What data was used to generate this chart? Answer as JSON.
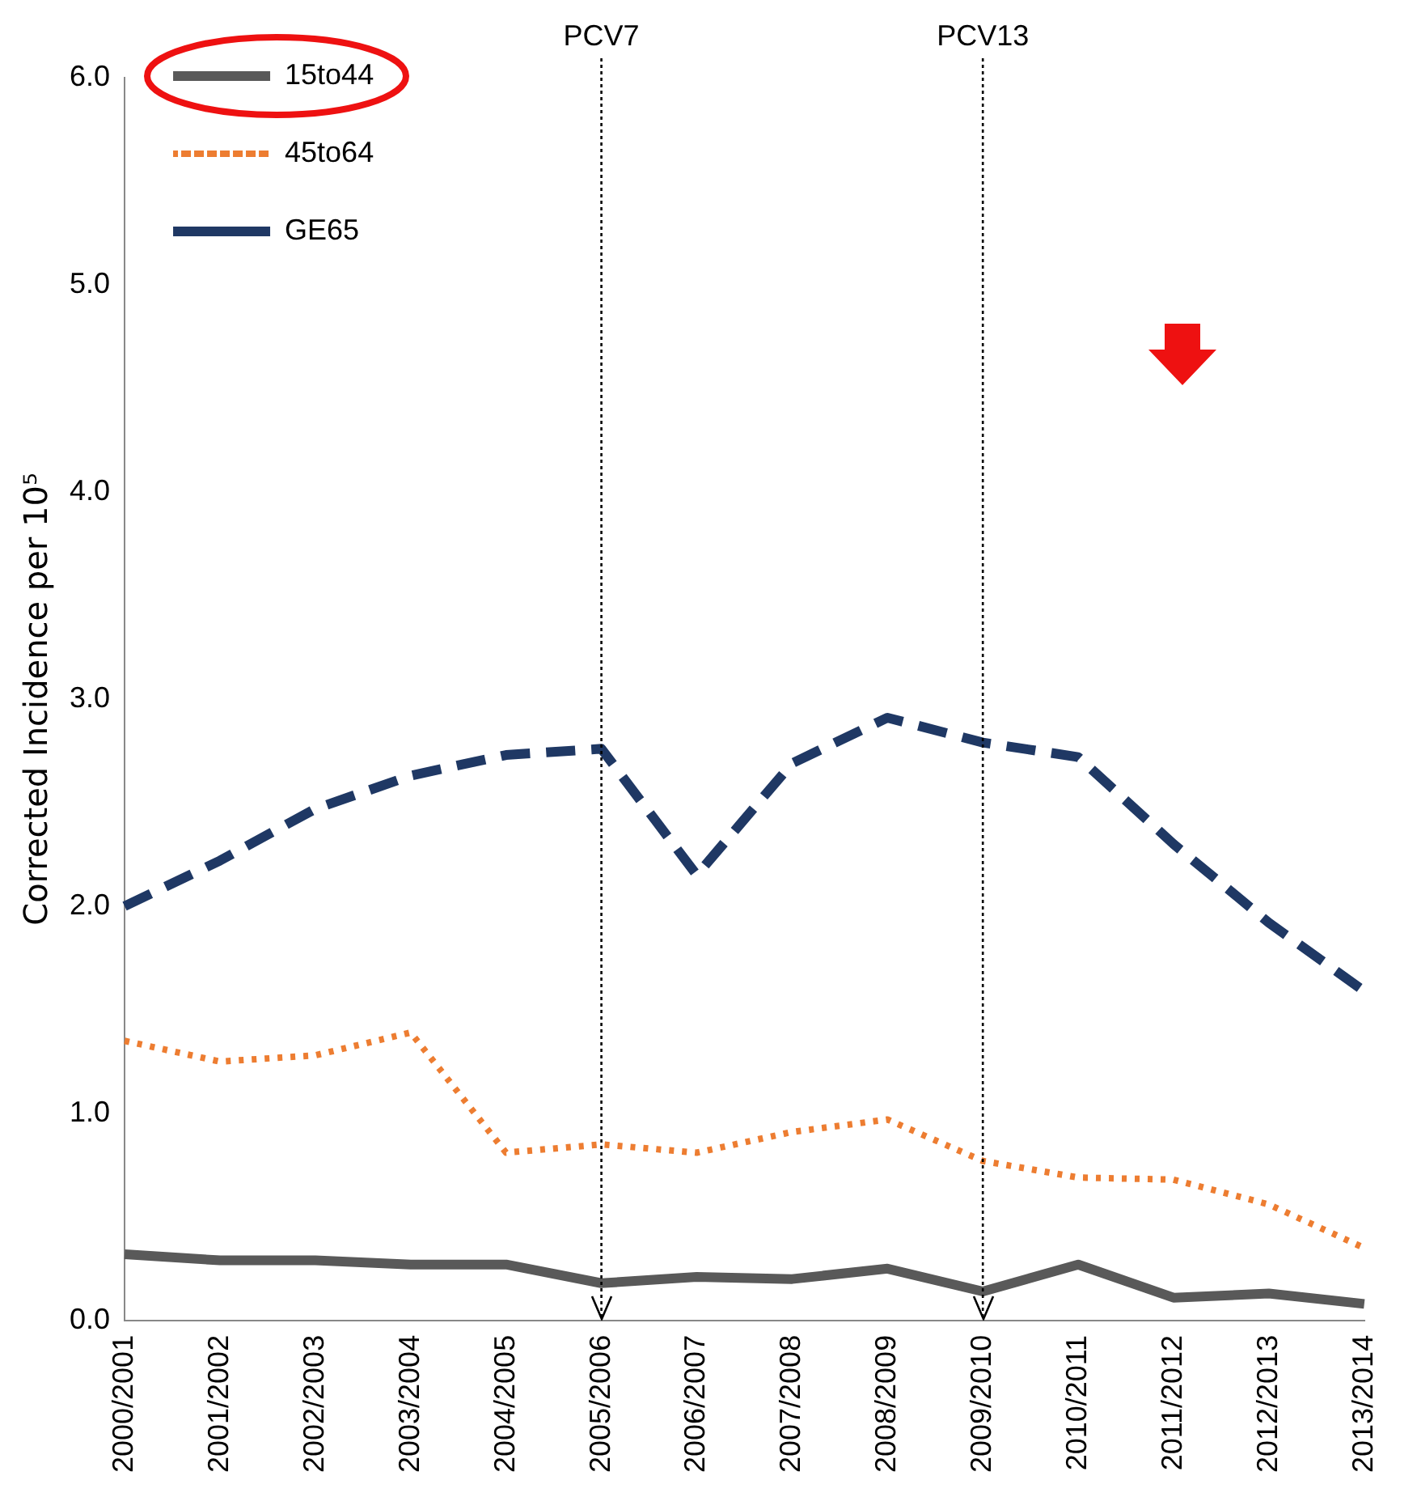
{
  "chart_data": {
    "type": "line",
    "ylabel": "Corrected Incidence per 10⁵",
    "categories": [
      "2000/2001",
      "2001/2002",
      "2002/2003",
      "2003/2004",
      "2004/2005",
      "2005/2006",
      "2006/2007",
      "2007/2008",
      "2008/2009",
      "2009/2010",
      "2010/2011",
      "2011/2012",
      "2012/2013",
      "2013/2014"
    ],
    "series": [
      {
        "name": "15to44",
        "color": "#595959",
        "line_style": "solid",
        "values": [
          0.32,
          0.29,
          0.29,
          0.27,
          0.27,
          0.18,
          0.21,
          0.2,
          0.25,
          0.14,
          0.27,
          0.11,
          0.13,
          0.08
        ]
      },
      {
        "name": "45to64",
        "color": "#ed7d31",
        "line_style": "dotted",
        "values": [
          1.35,
          1.25,
          1.28,
          1.39,
          0.81,
          0.85,
          0.81,
          0.91,
          0.97,
          0.77,
          0.69,
          0.68,
          0.56,
          0.35
        ]
      },
      {
        "name": "GE65",
        "color": "#1f3864",
        "line_style": "dashed",
        "values": [
          2.0,
          2.22,
          2.47,
          2.63,
          2.73,
          2.76,
          2.15,
          2.69,
          2.91,
          2.79,
          2.72,
          2.3,
          1.92,
          1.59
        ]
      }
    ],
    "ylim": [
      0,
      6
    ],
    "yticks": [
      {
        "value": 0,
        "label": "0.0"
      },
      {
        "value": 1,
        "label": "1.0"
      },
      {
        "value": 2,
        "label": "2.0"
      },
      {
        "value": 3,
        "label": "3.0"
      },
      {
        "value": 4,
        "label": "4.0"
      },
      {
        "value": 5,
        "label": "5.0"
      },
      {
        "value": 6,
        "label": "6.0"
      }
    ],
    "ref_lines": [
      {
        "axis": "x",
        "value": "2005/2006",
        "label": "PCV7",
        "color": "#000000",
        "line_style": "dotted"
      },
      {
        "axis": "x",
        "value": "2009/2010",
        "label": "PCV13",
        "color": "#000000",
        "line_style": "dotted"
      }
    ],
    "grid": false,
    "legend": "top left",
    "marker": "none"
  }
}
